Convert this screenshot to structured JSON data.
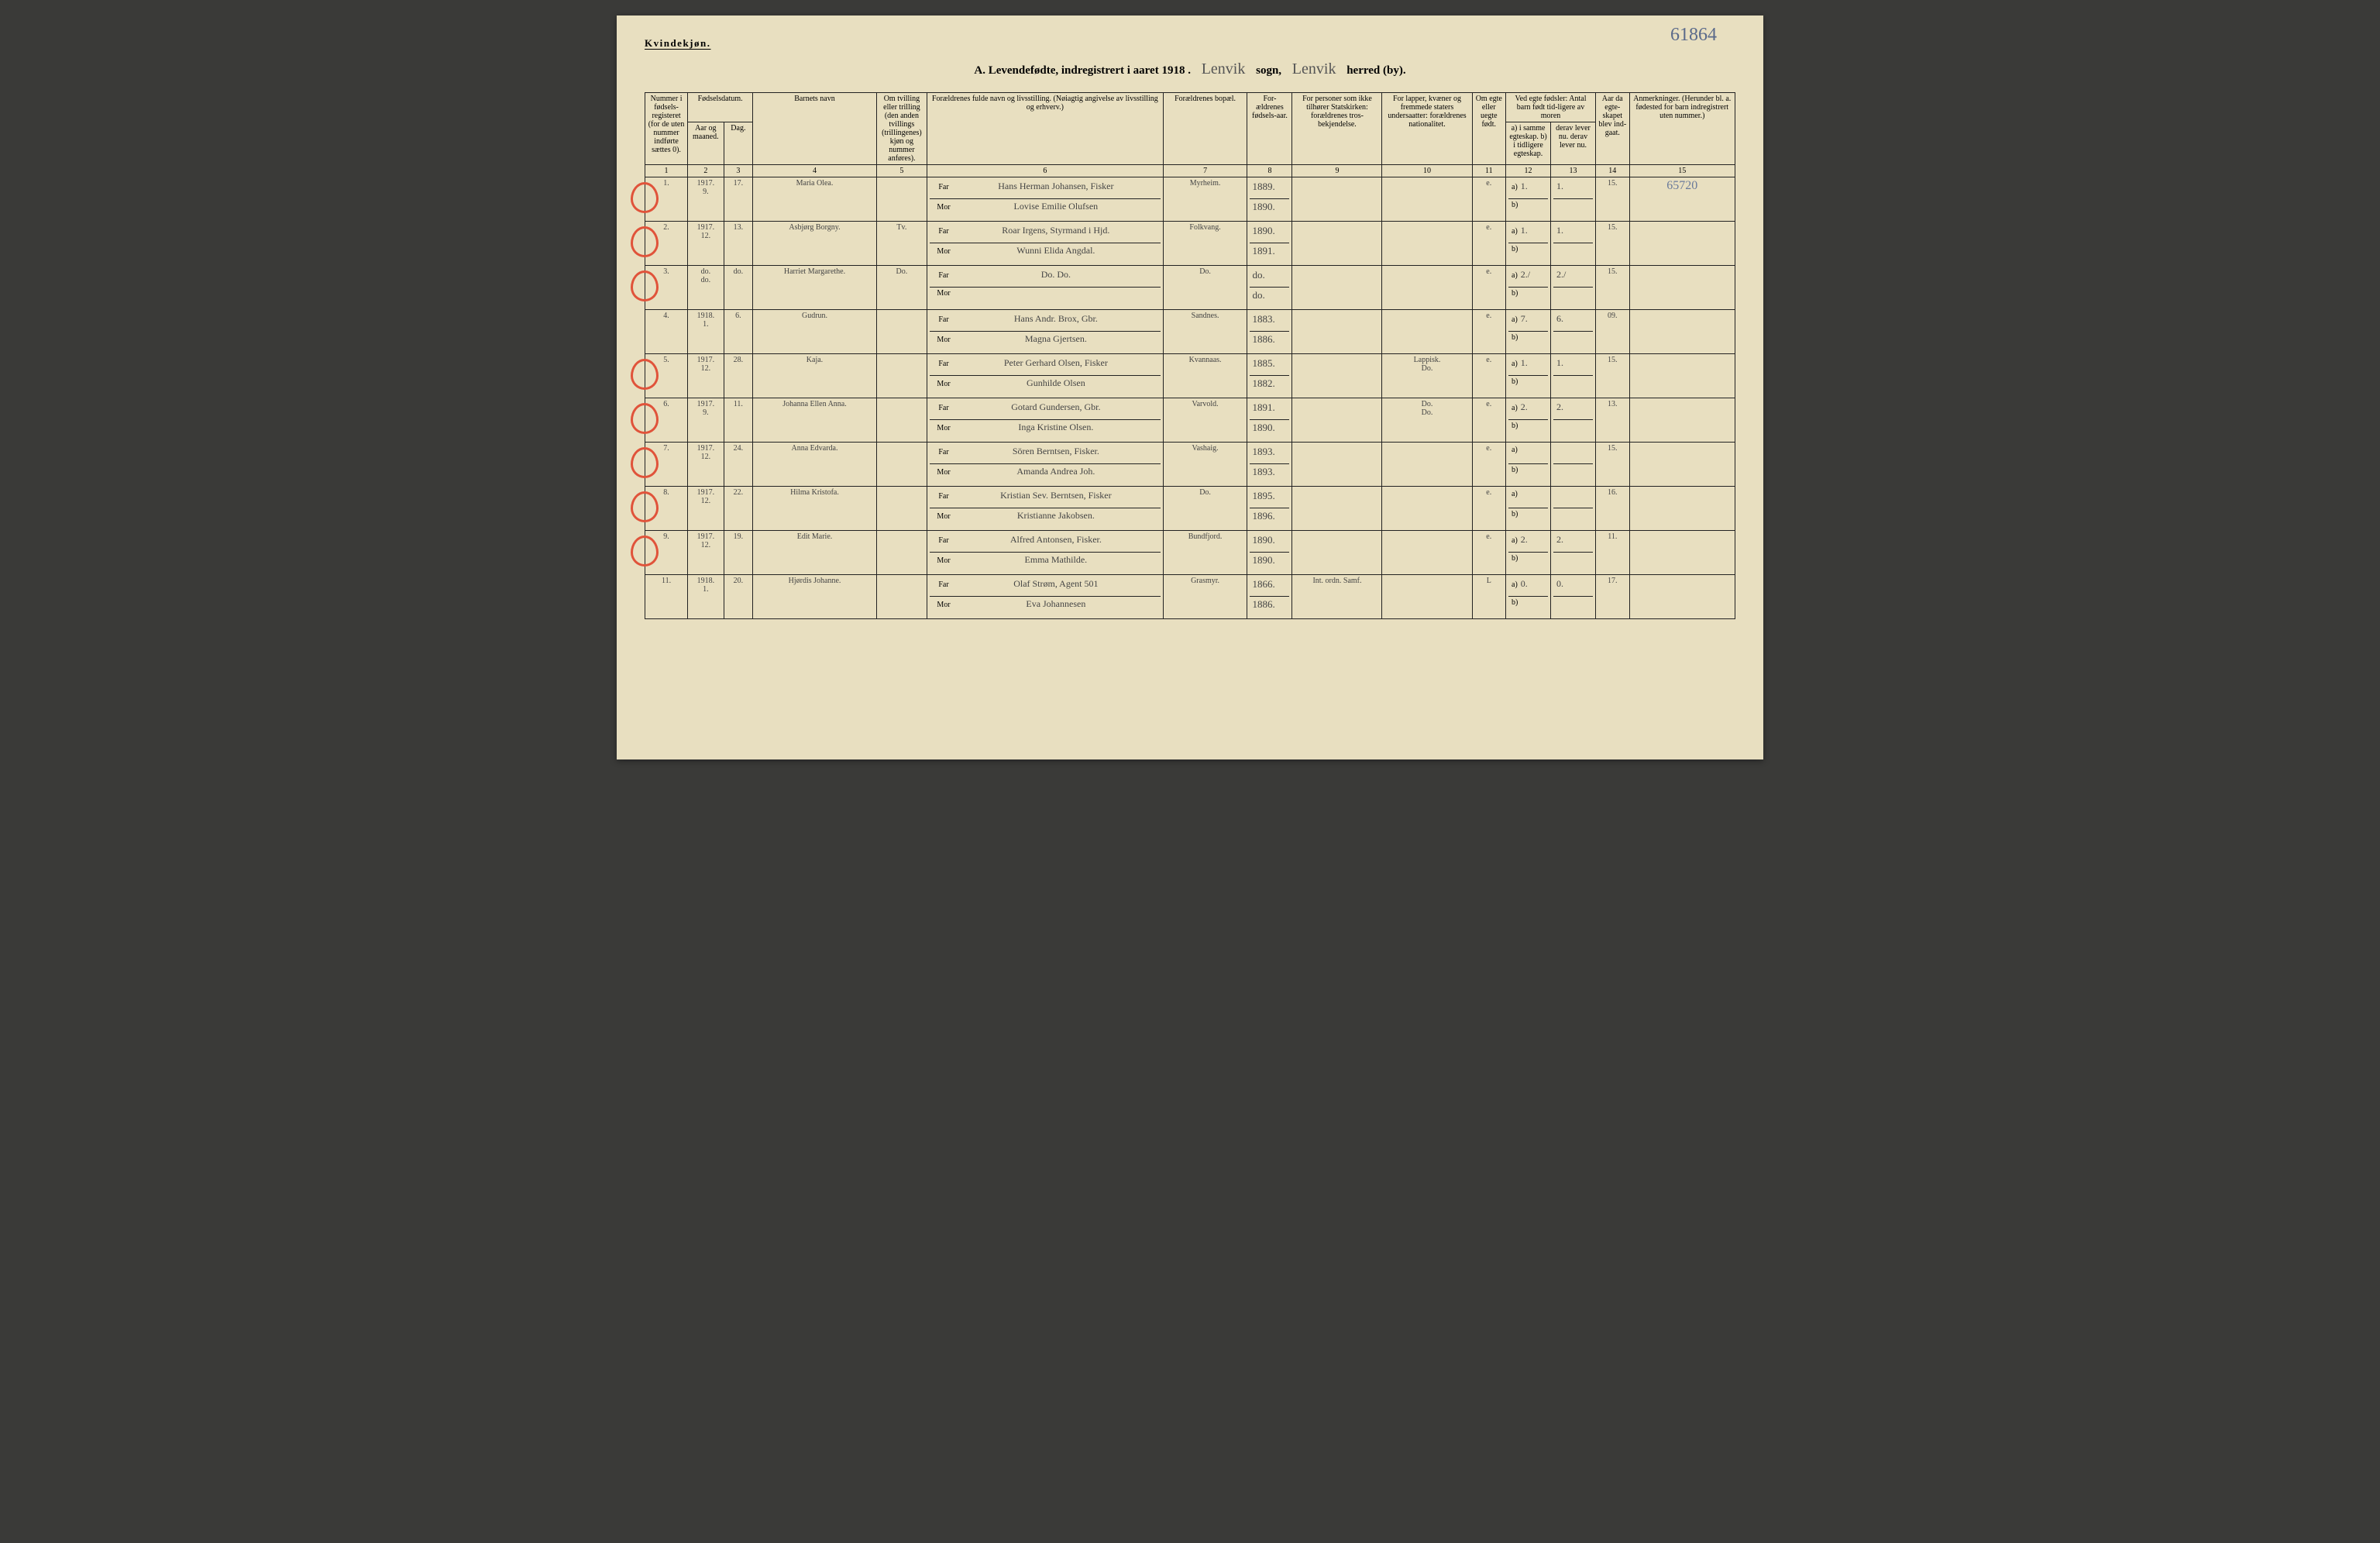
{
  "page_number_hand": "61864",
  "gender_label": "Kvindekjøn.",
  "title": {
    "a": "A. Levendefødte, indregistrert i aaret 191",
    "year_digit": "8",
    "sogn_script": "Lenvik",
    "sogn_label": "sogn,",
    "herred_script": "Lenvik",
    "herred_label": "herred (by)."
  },
  "headers": {
    "c1": "Nummer i fødsels-registeret (for de uten nummer indførte sættes 0).",
    "c23": "Fødselsdatum.",
    "c2": "Aar og maaned.",
    "c3": "Dag.",
    "c4": "Barnets navn",
    "c5": "Om tvilling eller trilling (den anden tvillings (trillingenes) kjøn og nummer anføres).",
    "c6": "Forældrenes fulde navn og livsstilling. (Nøiagtig angivelse av livsstilling og erhverv.)",
    "c7": "Forældrenes bopæl.",
    "c8": "For-ældrenes fødsels-aar.",
    "c9": "For personer som ikke tilhører Statskirken: forældrenes tros-bekjendelse.",
    "c10": "For lapper, kvæner og fremmede staters undersaatter: forældrenes nationalitet.",
    "c11": "Om egte eller uegte født.",
    "c12_13_top": "Ved egte fødsler: Antal barn født tid-ligere av moren",
    "c12": "a) i samme egteskap. b) i tidligere egteskap.",
    "c13": "derav lever nu. derav lever nu.",
    "c14": "Aar da egte-skapet blev ind-gaat.",
    "c15": "Anmerkninger. (Herunder bl. a. fødested for barn indregistrert uten nummer.)"
  },
  "colnums": [
    "1",
    "2",
    "3",
    "4",
    "5",
    "6",
    "7",
    "8",
    "9",
    "10",
    "11",
    "12",
    "13",
    "14",
    "15"
  ],
  "far_label": "Far",
  "mor_label": "Mor",
  "rows": [
    {
      "circle": true,
      "num": "1.",
      "ym": "1917.\n9.",
      "day": "17.",
      "name": "Maria Olea.",
      "twin": "",
      "far": "Hans Herman Johansen, Fisker",
      "mor": "Lovise Emilie Olufsen",
      "bopael": "Myrheim.",
      "yr_f": "1889.",
      "yr_m": "1890.",
      "rel": "",
      "nat": "",
      "egte": "e.",
      "a": "1.",
      "a_lev": "1.",
      "yr_m_ind": "15.",
      "anm": "65720"
    },
    {
      "circle": true,
      "num": "2.",
      "ym": "1917.\n12.",
      "day": "13.",
      "name": "Asbjørg Borgny.",
      "twin": "Tv.",
      "far": "Roar Irgens, Styrmand i Hjd.",
      "mor": "Wunni Elida Angdal.",
      "bopael": "Folkvang.",
      "yr_f": "1890.",
      "yr_m": "1891.",
      "rel": "",
      "nat": "",
      "egte": "e.",
      "a": "1.",
      "a_lev": "1.",
      "yr_m_ind": "15.",
      "anm": ""
    },
    {
      "circle": true,
      "num": "3.",
      "ym": "do.\ndo.",
      "day": "do.",
      "name": "Harriet Margarethe.",
      "twin": "Do.",
      "far": "Do.      Do.",
      "mor": "",
      "bopael": "Do.",
      "yr_f": "do.",
      "yr_m": "do.",
      "rel": "",
      "nat": "",
      "egte": "e.",
      "a": "2./",
      "a_lev": "2./",
      "yr_m_ind": "15.",
      "anm": ""
    },
    {
      "circle": false,
      "num": "4.",
      "ym": "1918.\n1.",
      "day": "6.",
      "name": "Gudrun.",
      "twin": "",
      "far": "Hans Andr. Brox, Gbr.",
      "mor": "Magna Gjertsen.",
      "bopael": "Sandnes.",
      "yr_f": "1883.",
      "yr_m": "1886.",
      "rel": "",
      "nat": "",
      "egte": "e.",
      "a": "7.",
      "a_lev": "6.",
      "yr_m_ind": "09.",
      "anm": ""
    },
    {
      "circle": true,
      "num": "5.",
      "ym": "1917.\n12.",
      "day": "28.",
      "name": "Kaja.",
      "twin": "",
      "far": "Peter Gerhard Olsen, Fisker",
      "mor": "Gunhilde Olsen",
      "bopael": "Kvannaas.",
      "yr_f": "1885.",
      "yr_m": "1882.",
      "rel": "",
      "nat": "Lappisk.\nDo.",
      "egte": "e.",
      "a": "1.",
      "a_lev": "1.",
      "yr_m_ind": "15.",
      "anm": ""
    },
    {
      "circle": true,
      "num": "6.",
      "ym": "1917.\n9.",
      "day": "11.",
      "name": "Johanna Ellen Anna.",
      "twin": "",
      "far": "Gotard Gundersen, Gbr.",
      "mor": "Inga Kristine Olsen.",
      "bopael": "Varvold.",
      "yr_f": "1891.",
      "yr_m": "1890.",
      "rel": "",
      "nat": "Do.\nDo.",
      "egte": "e.",
      "a": "2.",
      "a_lev": "2.",
      "yr_m_ind": "13.",
      "anm": ""
    },
    {
      "circle": true,
      "num": "7.",
      "ym": "1917.\n12.",
      "day": "24.",
      "name": "Anna Edvarda.",
      "twin": "",
      "far": "Sören Berntsen, Fisker.",
      "mor": "Amanda Andrea Joh.",
      "bopael": "Vashaig.",
      "yr_f": "1893.",
      "yr_m": "1893.",
      "rel": "",
      "nat": "",
      "egte": "e.",
      "a": "",
      "a_lev": "",
      "yr_m_ind": "15.",
      "anm": ""
    },
    {
      "circle": true,
      "num": "8.",
      "ym": "1917.\n12.",
      "day": "22.",
      "name": "Hilma Kristofa.",
      "twin": "",
      "far": "Kristian Sev. Berntsen, Fisker",
      "mor": "Kristianne Jakobsen.",
      "bopael": "Do.",
      "yr_f": "1895.",
      "yr_m": "1896.",
      "rel": "",
      "nat": "",
      "egte": "e.",
      "a": "",
      "a_lev": "",
      "yr_m_ind": "16.",
      "anm": ""
    },
    {
      "circle": true,
      "num": "9.",
      "ym": "1917.\n12.",
      "day": "19.",
      "name": "Edit Marie.",
      "twin": "",
      "far": "Alfred Antonsen, Fisker.",
      "mor": "Emma Mathilde.",
      "bopael": "Bundfjord.",
      "yr_f": "1890.",
      "yr_m": "1890.",
      "rel": "",
      "nat": "",
      "egte": "e.",
      "a": "2.",
      "a_lev": "2.",
      "yr_m_ind": "11.",
      "anm": ""
    },
    {
      "circle": false,
      "num": "11.",
      "ym": "1918.\n1.",
      "day": "20.",
      "name": "Hjørdis Johanne.",
      "twin": "",
      "far": "Olaf Strøm, Agent  501",
      "mor": "Eva Johannesen",
      "bopael": "Grasmyr.",
      "yr_f": "1866.",
      "yr_m": "1886.",
      "rel": "Int. ordn. Samf.",
      "nat": "",
      "egte": "L",
      "a": "0.",
      "a_lev": "0.",
      "yr_m_ind": "17.",
      "anm": ""
    }
  ],
  "circle_color": "#e0533a",
  "paper_color": "#e8dfc0",
  "ink_color": "#222222"
}
